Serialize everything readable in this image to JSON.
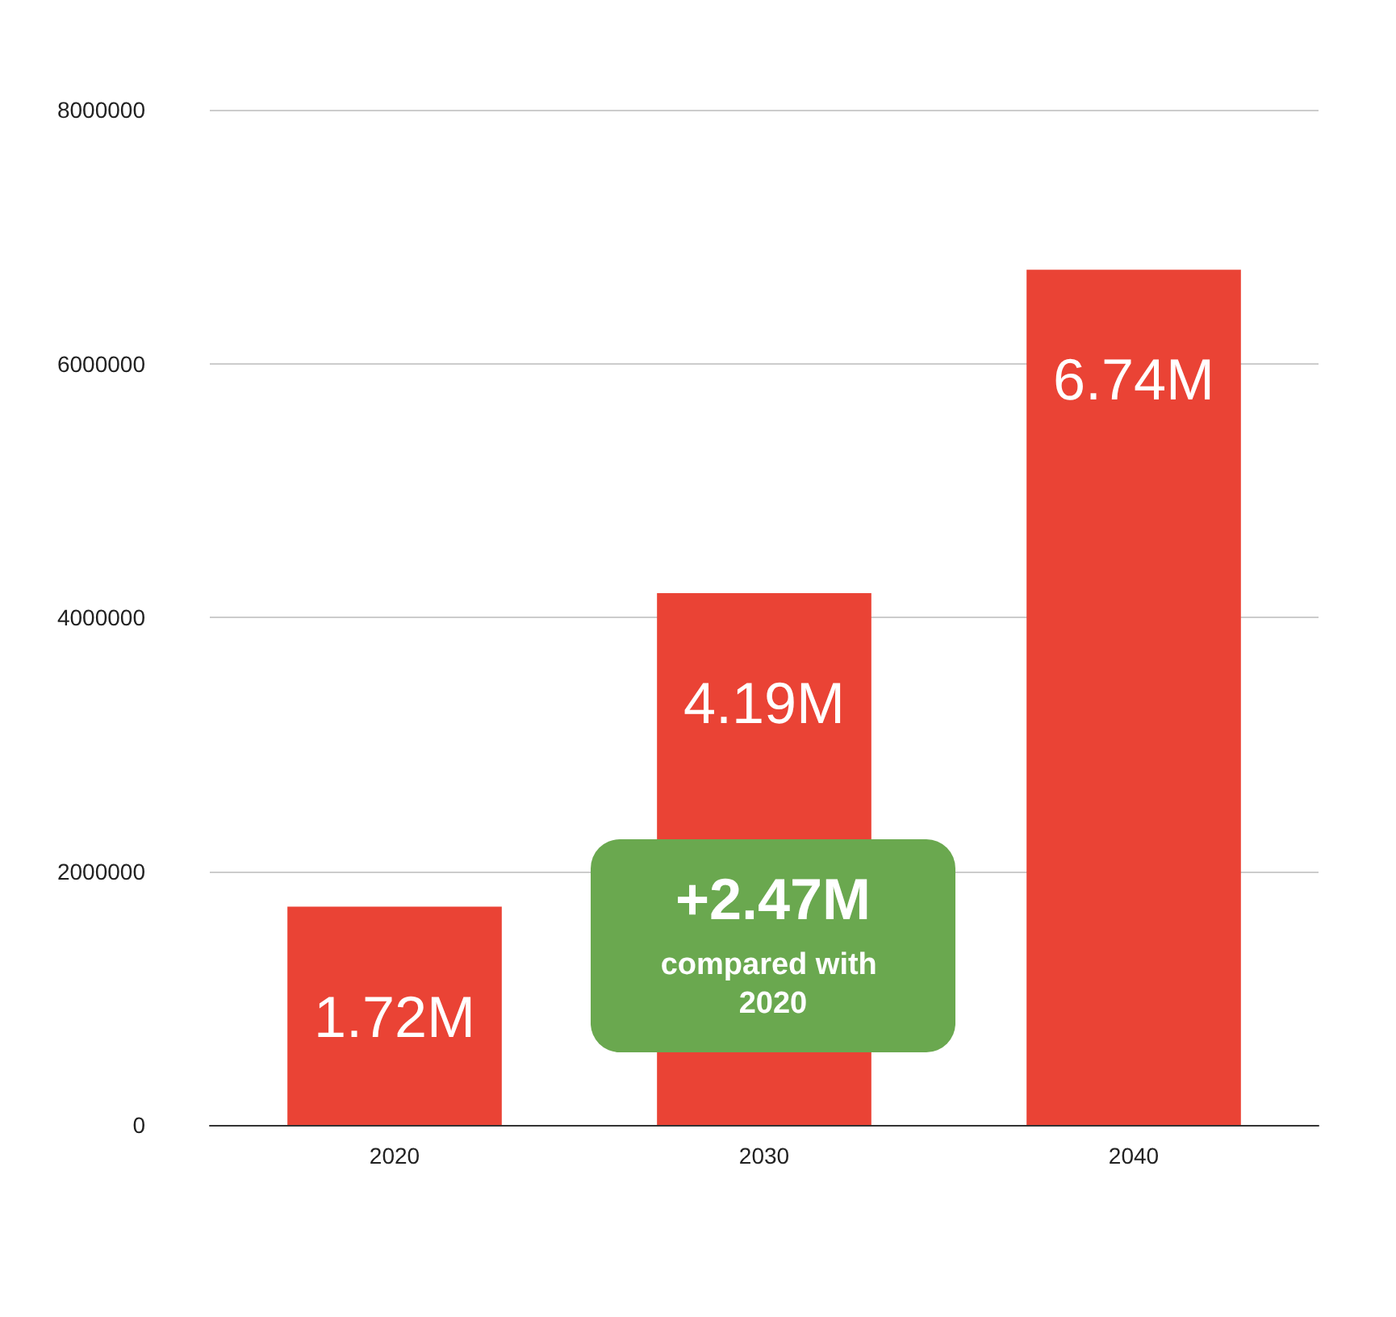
{
  "chart_data": {
    "type": "bar",
    "categories": [
      "2020",
      "2030",
      "2040"
    ],
    "values": [
      1720000,
      4190000,
      6740000
    ],
    "value_labels": [
      "1.72M",
      "4.19M",
      "6.74M"
    ],
    "color": "#ea4335",
    "ylim": [
      0,
      8000000
    ],
    "yticks": [
      0,
      2000000,
      4000000,
      6000000,
      8000000
    ],
    "grid": "y",
    "annotations": [
      "+2.47M",
      "compared with 2020"
    ]
  }
}
